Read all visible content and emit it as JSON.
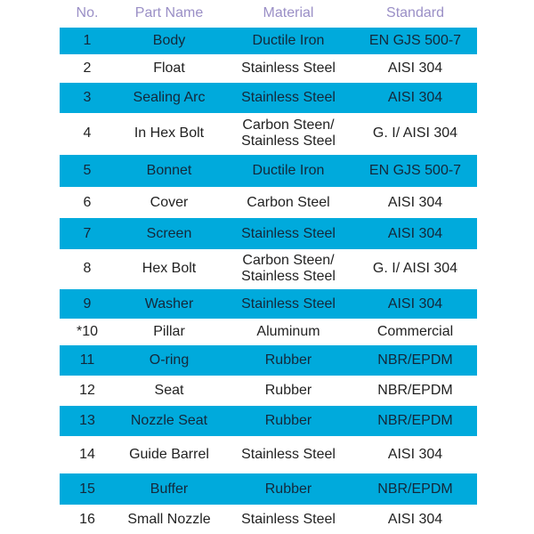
{
  "headers": [
    "No.",
    "Part Name",
    "Material",
    "Standard"
  ],
  "colors": {
    "band": "#00aadc",
    "header_text": "#9a8fc6"
  },
  "rows": [
    [
      "1",
      "Body",
      "Ductile Iron",
      "EN GJS 500-7"
    ],
    [
      "2",
      "Float",
      "Stainless Steel",
      "AISI 304"
    ],
    [
      "3",
      "Sealing Arc",
      "Stainless Steel",
      "AISI 304"
    ],
    [
      "4",
      "In Hex Bolt",
      "Carbon Steen/\nStainless Steel",
      "G. I/ AISI 304"
    ],
    [
      "5",
      "Bonnet",
      "Ductile Iron",
      "EN GJS 500-7"
    ],
    [
      "6",
      "Cover",
      "Carbon Steel",
      "AISI 304"
    ],
    [
      "7",
      "Screen",
      "Stainless Steel",
      "AISI 304"
    ],
    [
      "8",
      "Hex Bolt",
      "Carbon Steen/\nStainless Steel",
      "G. I/ AISI 304"
    ],
    [
      "9",
      "Washer",
      "Stainless Steel",
      "AISI 304"
    ],
    [
      "*10",
      "Pillar",
      "Aluminum",
      "Commercial"
    ],
    [
      "11",
      "O-ring",
      "Rubber",
      "NBR/EPDM"
    ],
    [
      "12",
      "Seat",
      "Rubber",
      "NBR/EPDM"
    ],
    [
      "13",
      "Nozzle Seat",
      "Rubber",
      "NBR/EPDM"
    ],
    [
      "14",
      "Guide Barrel",
      "Stainless Steel",
      "AISI 304"
    ],
    [
      "15",
      "Buffer",
      "Rubber",
      "NBR/EPDM"
    ],
    [
      "16",
      "Small Nozzle",
      "Stainless Steel",
      "AISI 304"
    ]
  ]
}
